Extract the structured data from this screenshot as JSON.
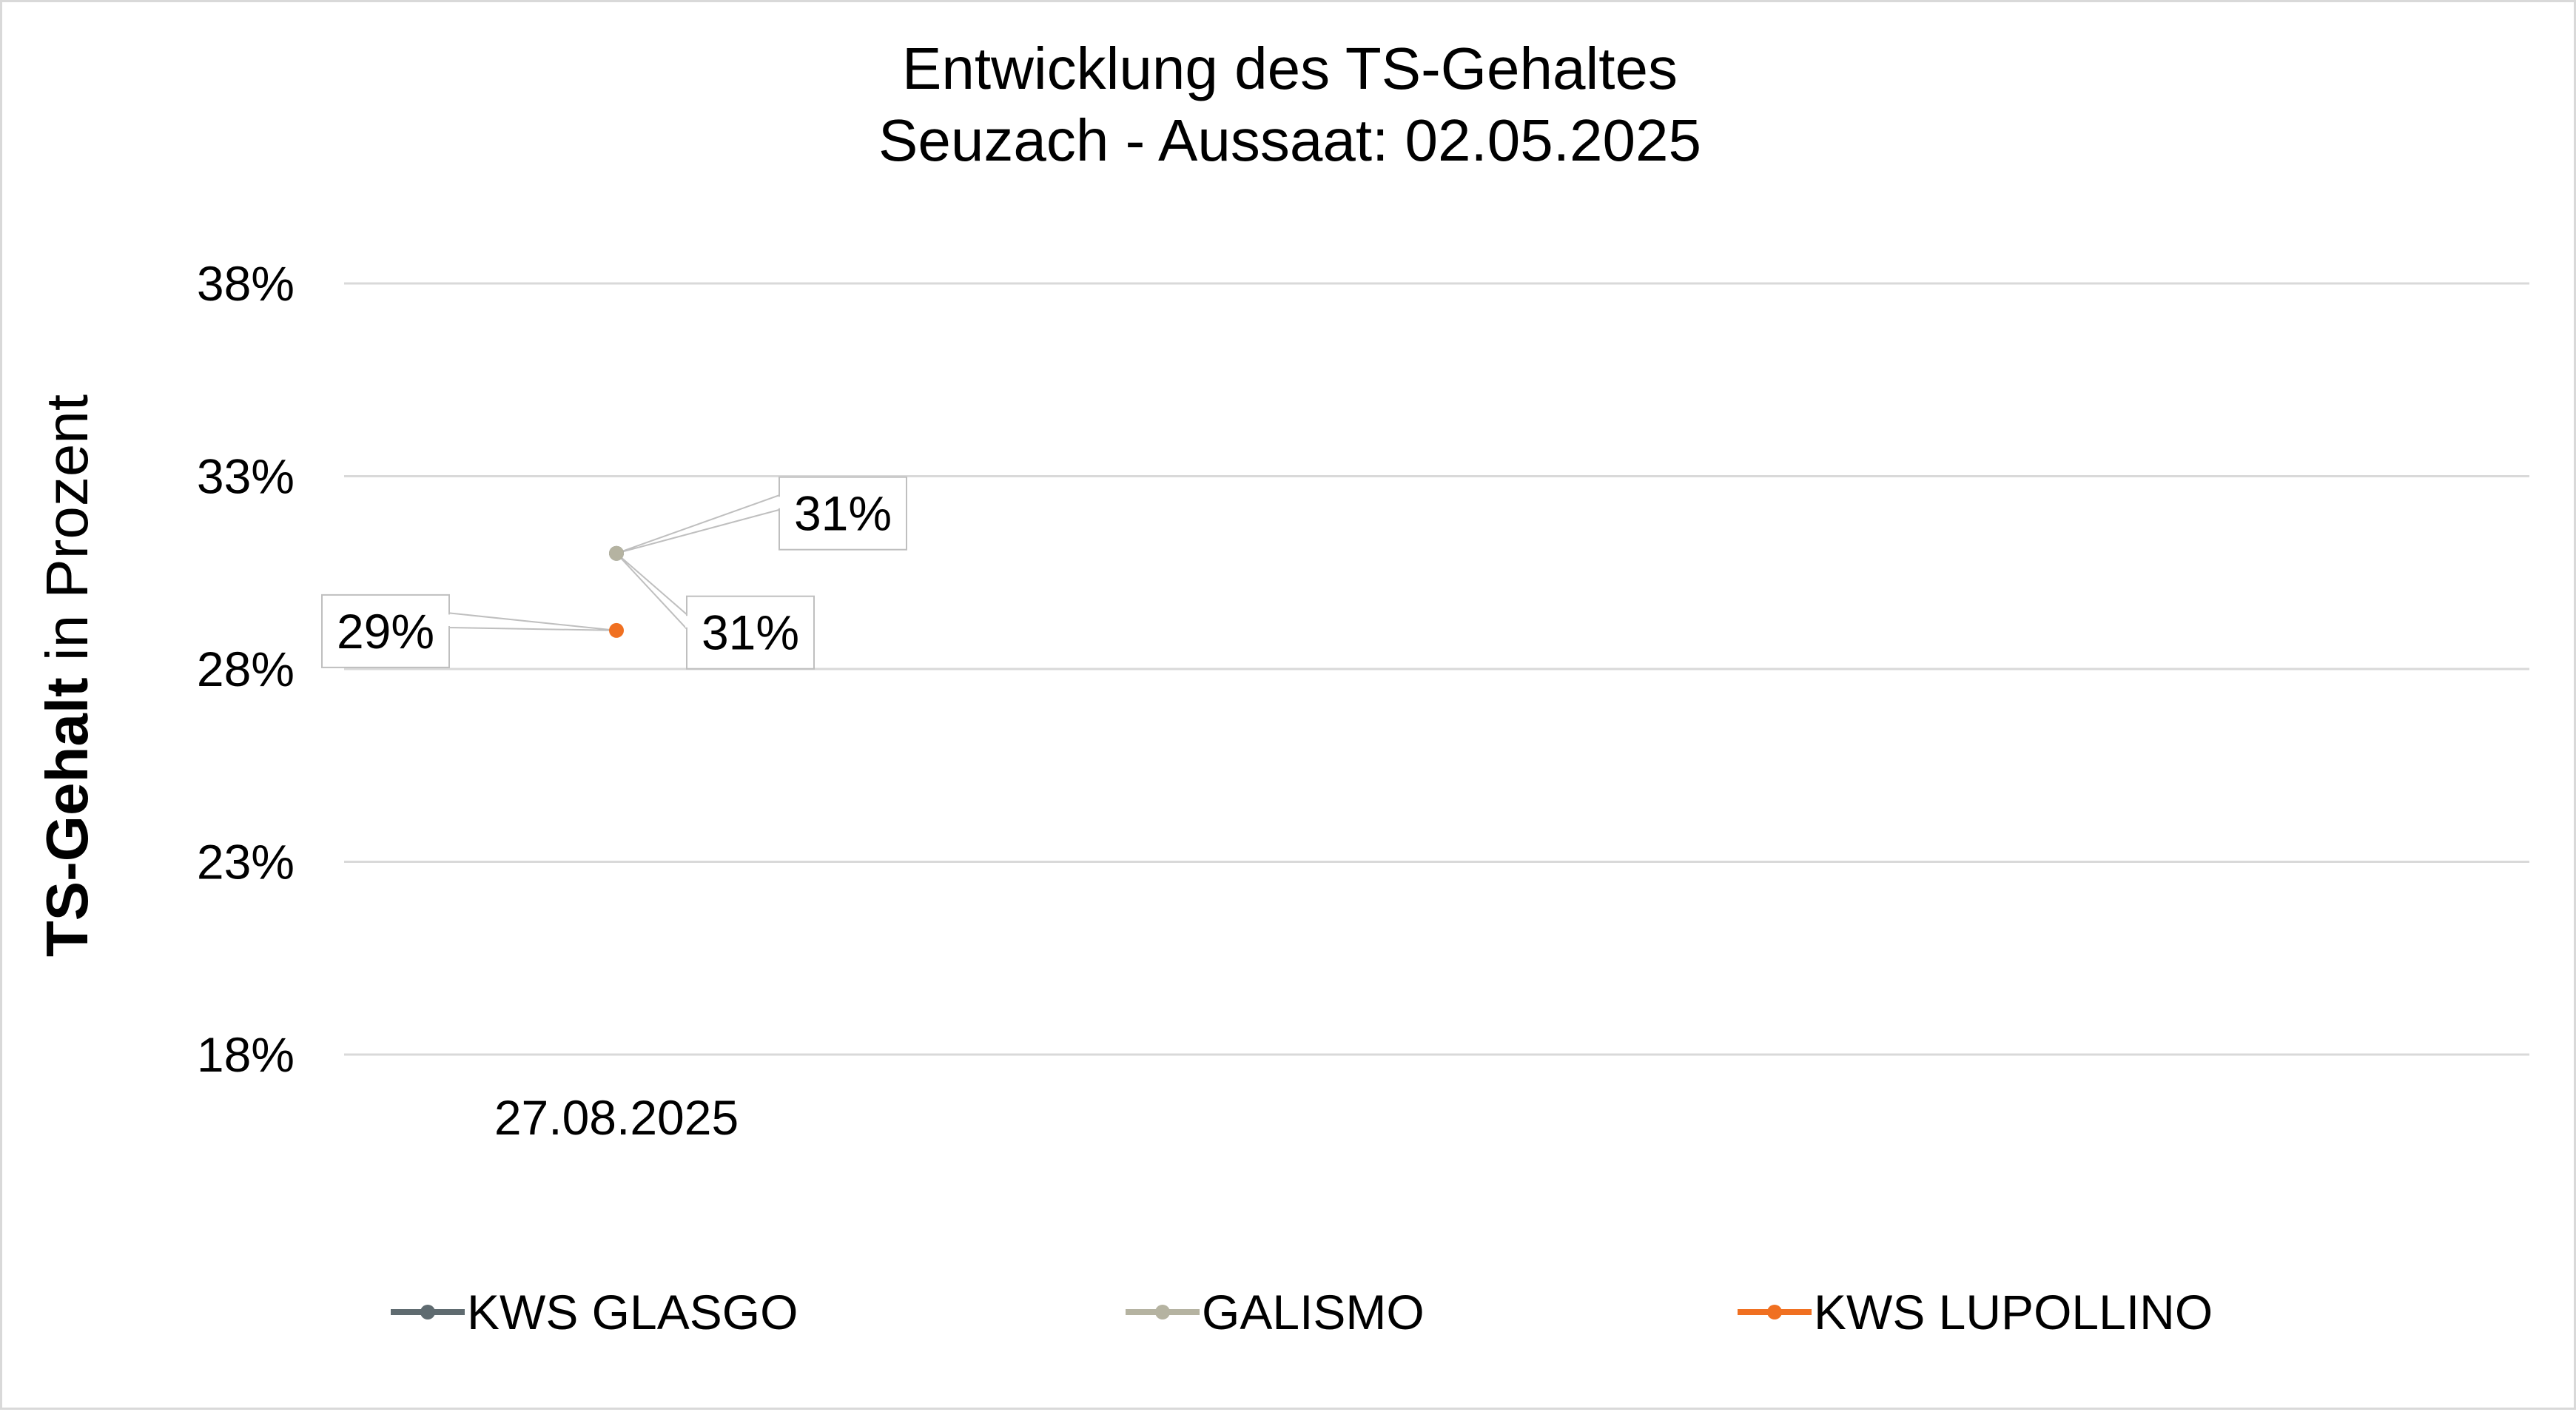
{
  "chart_data": {
    "type": "line",
    "title": [
      "Entwicklung des TS-Gehaltes",
      "Seuzach - Aussaat: 02.05.2025"
    ],
    "ylabel": {
      "bold": "TS-Gehalt",
      "regular": " in Prozent"
    },
    "xlabel": "",
    "categories": [
      "27.08.2025"
    ],
    "ylim": [
      0.18,
      0.38
    ],
    "yticks": [
      0.18,
      0.23,
      0.28,
      0.33,
      0.38
    ],
    "ytick_labels": [
      "18%",
      "23%",
      "28%",
      "33%",
      "38%"
    ],
    "grid": true,
    "legend_position": "bottom",
    "series": [
      {
        "name": "KWS GLASGO",
        "color": "#5f6b70",
        "values": [
          0.31
        ],
        "data_labels": [
          "31%"
        ]
      },
      {
        "name": "GALISMO",
        "color": "#b5b3a1",
        "values": [
          0.31
        ],
        "data_labels": [
          "31%"
        ]
      },
      {
        "name": "KWS LUPOLLINO",
        "color": "#f07021",
        "values": [
          0.29
        ],
        "data_labels": [
          "29%"
        ]
      }
    ]
  }
}
